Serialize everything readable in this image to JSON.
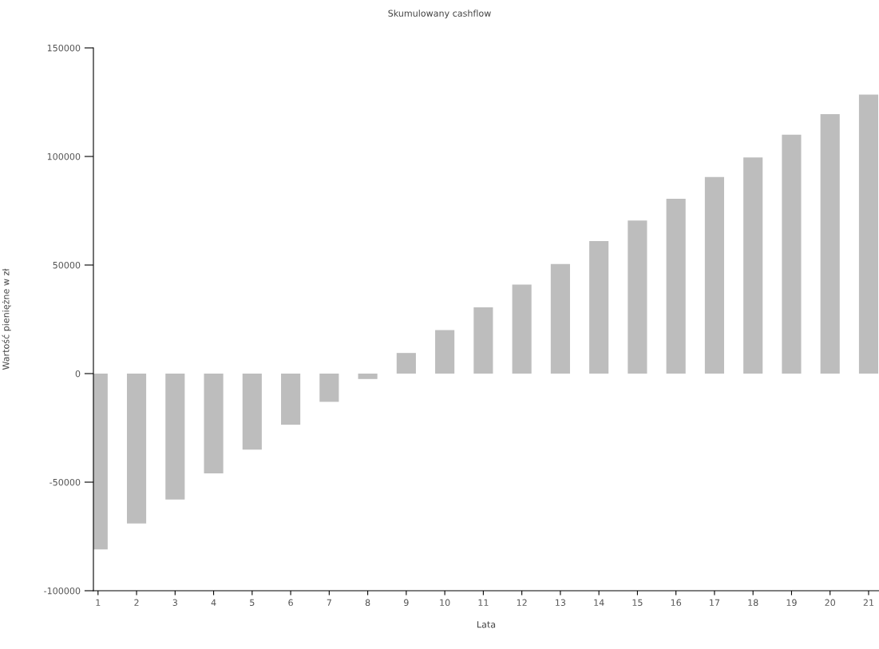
{
  "chart_data": {
    "type": "bar",
    "title": "Skumulowany cashflow",
    "xlabel": "Lata",
    "ylabel": "Wartość pieniężne w zł",
    "categories": [
      "1",
      "2",
      "3",
      "4",
      "5",
      "6",
      "7",
      "8",
      "9",
      "10",
      "11",
      "12",
      "13",
      "14",
      "15",
      "16",
      "17",
      "18",
      "19",
      "20",
      "21"
    ],
    "values": [
      -81000,
      -69000,
      -58000,
      -46000,
      -35000,
      -23500,
      -13000,
      -2500,
      9500,
      20000,
      30500,
      41000,
      50500,
      61000,
      70500,
      80500,
      90500,
      99500,
      110000,
      119500,
      128500
    ],
    "color": "#bdbdbd",
    "ylim": [
      -100000,
      150000
    ],
    "yticks": [
      -100000,
      -50000,
      0,
      50000,
      100000,
      150000
    ],
    "grid": false,
    "legend": false
  }
}
